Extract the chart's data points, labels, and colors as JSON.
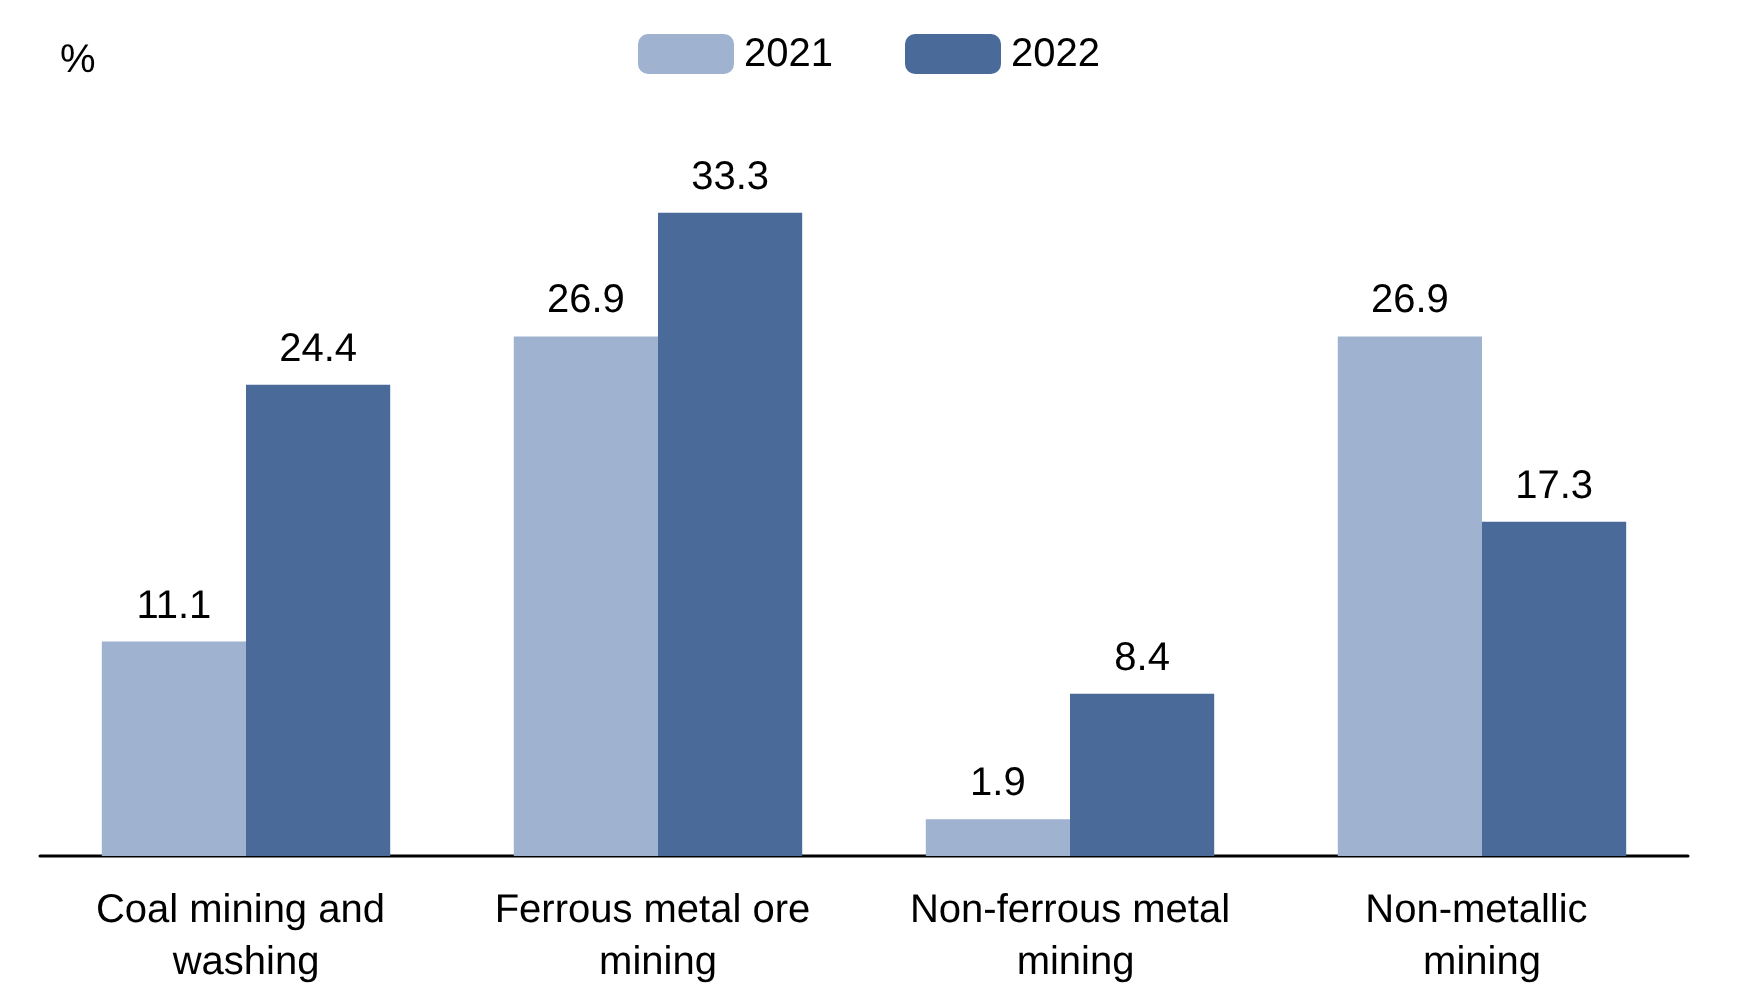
{
  "chart_data": {
    "type": "bar",
    "ylabel": "%",
    "categories": [
      "Coal mining and washing",
      "Ferrous metal ore mining",
      "Non-ferrous metal mining",
      "Non-metallic mining"
    ],
    "series": [
      {
        "name": "2021",
        "color": "#9fb2d0",
        "values": [
          11.1,
          26.9,
          1.9,
          26.9
        ]
      },
      {
        "name": "2022",
        "color": "#4a6a9a",
        "values": [
          24.4,
          33.3,
          8.4,
          17.3
        ]
      }
    ],
    "tick_labels": "x",
    "data_labels": true,
    "legend": "top"
  }
}
